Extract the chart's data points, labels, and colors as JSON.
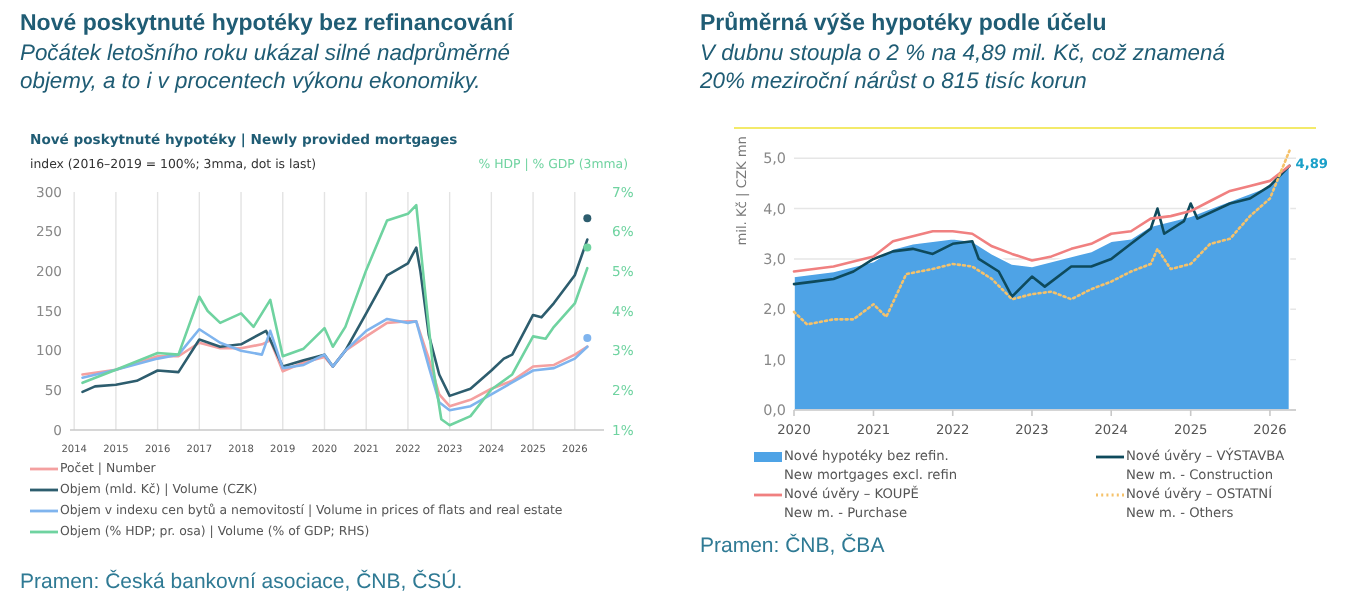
{
  "chart_data": [
    {
      "type": "line",
      "title": "Nové poskytnuté hypotéky bez refinancování",
      "subtitle": "Počátek letošního roku ukázal silné nadprůměrné\nobjemy, a to i v procentech výkonu ekonomiky.",
      "annotations": [
        "Nové poskytnuté hypotéky | Newly provided mortgages",
        "index (2016–2019 = 100%; 3mma, dot is last)",
        "Pramen: Česká bankovní asociace, ČNB, ČSÚ."
      ],
      "y2label": "% HDP | % GDP (3mma)",
      "xlim": [
        2013.9,
        2026.7
      ],
      "xticks": [
        2014,
        2015,
        2016,
        2017,
        2018,
        2019,
        2020,
        2021,
        2022,
        2023,
        2024,
        2025,
        2026
      ],
      "ylim": [
        0,
        300
      ],
      "yticks": [
        0,
        50,
        100,
        150,
        200,
        250,
        300
      ],
      "y2lim": [
        1,
        7
      ],
      "y2ticks": [
        {
          "value": 1,
          "label": "1%"
        },
        {
          "value": 2,
          "label": "2%"
        },
        {
          "value": 3,
          "label": "3%"
        },
        {
          "value": 4,
          "label": "4%"
        },
        {
          "value": 5,
          "label": "5%"
        },
        {
          "value": 6,
          "label": "6%"
        },
        {
          "value": 7,
          "label": "7%"
        }
      ],
      "grid": "x",
      "legend": "bottom",
      "series": [
        {
          "name": "Počet | Number",
          "color": "#f4a0a0",
          "x": [
            2014.2,
            2015,
            2016,
            2016.5,
            2017,
            2017.5,
            2018,
            2018.5,
            2018.7,
            2019,
            2019.5,
            2020,
            2020.2,
            2020.5,
            2021,
            2021.5,
            2022,
            2022.2,
            2022.5,
            2022.75,
            2023,
            2023.5,
            2024,
            2024.5,
            2025,
            2025.5,
            2026,
            2026.3
          ],
          "values": [
            70,
            76,
            93,
            93,
            110,
            103,
            103,
            108,
            113,
            74,
            85,
            92,
            80,
            100,
            118,
            135,
            137,
            137,
            90,
            45,
            30,
            38,
            52,
            62,
            80,
            82,
            95,
            105
          ]
        },
        {
          "name": "Objem (mld. Kč) | Volume (CZK)",
          "color": "#2d5d6e",
          "x": [
            2014.2,
            2014.5,
            2015,
            2015.5,
            2016,
            2016.5,
            2017,
            2017.5,
            2018,
            2018.6,
            2019,
            2019.5,
            2020,
            2020.2,
            2020.5,
            2021,
            2021.5,
            2022,
            2022.2,
            2022.3,
            2022.5,
            2022.75,
            2023,
            2023.5,
            2024,
            2024.3,
            2024.5,
            2025,
            2025.2,
            2025.5,
            2026,
            2026.3
          ],
          "values": [
            48,
            55,
            57,
            62,
            75,
            73,
            114,
            105,
            108,
            125,
            80,
            88,
            95,
            80,
            100,
            147,
            195,
            210,
            230,
            200,
            120,
            70,
            43,
            52,
            75,
            90,
            95,
            145,
            142,
            160,
            195,
            240
          ]
        },
        {
          "name": "Objem v indexu cen bytů a nemovitostí | Volume in prices of flats and real estate",
          "color": "#7fb4ee",
          "x": [
            2014.2,
            2015,
            2016,
            2016.5,
            2017,
            2017.5,
            2018,
            2018.5,
            2018.7,
            2019,
            2019.5,
            2020,
            2020.2,
            2020.5,
            2021,
            2021.5,
            2022,
            2022.2,
            2022.5,
            2022.75,
            2023,
            2023.5,
            2024,
            2024.5,
            2025,
            2025.5,
            2026,
            2026.3
          ],
          "values": [
            66,
            76,
            90,
            95,
            127,
            110,
            100,
            95,
            125,
            78,
            82,
            95,
            80,
            100,
            125,
            140,
            135,
            137,
            80,
            35,
            25,
            30,
            45,
            60,
            75,
            78,
            90,
            105
          ]
        },
        {
          "name": "Objem (% HDP; pr. osa) | Volume (% of GDP; RHS)",
          "color": "#6fd3a0",
          "axis": "y2",
          "x": [
            2014.2,
            2015,
            2016,
            2016.5,
            2017,
            2017.2,
            2017.5,
            2018,
            2018.3,
            2018.7,
            2019,
            2019.5,
            2020,
            2020.2,
            2020.5,
            2021,
            2021.5,
            2022,
            2022.2,
            2022.4,
            2022.6,
            2022.8,
            2023,
            2023.5,
            2024,
            2024.5,
            2025,
            2025.3,
            2025.5,
            2026,
            2026.3
          ],
          "values": [
            2.19,
            2.52,
            2.94,
            2.9,
            4.36,
            4.0,
            3.7,
            3.94,
            3.6,
            4.28,
            2.86,
            3.05,
            3.57,
            3.1,
            3.6,
            5.03,
            6.28,
            6.45,
            6.67,
            4.6,
            2.6,
            1.27,
            1.12,
            1.35,
            2.02,
            2.4,
            3.36,
            3.3,
            3.6,
            4.19,
            5.08
          ]
        },
        {
          "type": "scatter",
          "color": "#2d5d6e",
          "x": [
            2026.3
          ],
          "values": [
            267
          ]
        },
        {
          "type": "scatter",
          "color": "#6fd3a0",
          "axis": "y2",
          "x": [
            2026.3
          ],
          "values": [
            5.6
          ]
        },
        {
          "type": "scatter",
          "color": "#7fb4ee",
          "x": [
            2026.3
          ],
          "values": [
            116
          ]
        }
      ]
    },
    {
      "type": "line",
      "title": "Průměrná výše hypotéky podle účelu",
      "subtitle": "V dubnu stoupla o 2 % na 4,89 mil. Kč, což znamená\n20% meziroční nárůst o 815 tisíc korun",
      "annotations": [
        {
          "text": "4,89",
          "x": "2026-04",
          "y": 4.89
        },
        "Pramen: ČNB, ČBA"
      ],
      "ylabel": "mil. Kč  |  CZK mn",
      "xlim": [
        "2020-01",
        "2026-05"
      ],
      "xticks": [
        "2020",
        "2021",
        "2022",
        "2023",
        "2024",
        "2025",
        "2026"
      ],
      "ylim": [
        0,
        5.6
      ],
      "yticks": [
        {
          "value": 0,
          "label": "0,0"
        },
        {
          "value": 1,
          "label": "1,0"
        },
        {
          "value": 2,
          "label": "2,0"
        },
        {
          "value": 3,
          "label": "3,0"
        },
        {
          "value": 4,
          "label": "4,0"
        },
        {
          "value": 5,
          "label": "5,0"
        }
      ],
      "grid": "y",
      "legend": "bottom",
      "series": [
        {
          "type": "area",
          "name": "Nové hypotéky bez refin.\nNew mortgages excl. refin",
          "color": "#4ea3e6",
          "x": [
            "2020-01",
            "2020-07",
            "2021-01",
            "2021-04",
            "2021-07",
            "2021-10",
            "2022-01",
            "2022-04",
            "2022-07",
            "2022-10",
            "2023-01",
            "2023-04",
            "2023-07",
            "2023-10",
            "2024-01",
            "2024-04",
            "2024-07",
            "2024-10",
            "2025-01",
            "2025-04",
            "2025-07",
            "2025-10",
            "2026-01",
            "2026-04"
          ],
          "values": [
            2.65,
            2.75,
            2.95,
            3.2,
            3.3,
            3.35,
            3.4,
            3.35,
            3.1,
            2.9,
            2.85,
            2.95,
            3.05,
            3.15,
            3.35,
            3.4,
            3.65,
            3.75,
            3.85,
            4.0,
            4.15,
            4.3,
            4.45,
            4.89
          ]
        },
        {
          "name": "Nové úvěry – VÝSTAVBA\nNew m. - Construction",
          "color": "#0e4a5c",
          "x": [
            "2020-01",
            "2020-04",
            "2020-07",
            "2020-10",
            "2021-01",
            "2021-04",
            "2021-07",
            "2021-10",
            "2022-01",
            "2022-04",
            "2022-05",
            "2022-08",
            "2022-10",
            "2023-01",
            "2023-03",
            "2023-07",
            "2023-10",
            "2024-01",
            "2024-04",
            "2024-07",
            "2024-08",
            "2024-09",
            "2024-12",
            "2025-01",
            "2025-02",
            "2025-07",
            "2025-10",
            "2026-01",
            "2026-04"
          ],
          "values": [
            2.5,
            2.55,
            2.6,
            2.75,
            3.0,
            3.15,
            3.2,
            3.1,
            3.3,
            3.35,
            3.0,
            2.75,
            2.25,
            2.65,
            2.45,
            2.85,
            2.85,
            3.0,
            3.3,
            3.6,
            4.0,
            3.5,
            3.75,
            4.1,
            3.8,
            4.1,
            4.2,
            4.45,
            4.85
          ]
        },
        {
          "name": "Nové úvěry – KOUPĚ\nNew m. - Purchase",
          "color": "#f08080",
          "x": [
            "2020-01",
            "2020-07",
            "2021-01",
            "2021-04",
            "2021-07",
            "2021-10",
            "2022-01",
            "2022-04",
            "2022-07",
            "2022-10",
            "2023-01",
            "2023-04",
            "2023-07",
            "2023-10",
            "2024-01",
            "2024-04",
            "2024-07",
            "2024-10",
            "2025-01",
            "2025-04",
            "2025-07",
            "2025-10",
            "2026-01",
            "2026-04"
          ],
          "values": [
            2.75,
            2.85,
            3.05,
            3.35,
            3.45,
            3.55,
            3.55,
            3.5,
            3.25,
            3.1,
            2.97,
            3.05,
            3.2,
            3.3,
            3.5,
            3.55,
            3.8,
            3.85,
            3.95,
            4.15,
            4.35,
            4.45,
            4.55,
            4.85
          ]
        },
        {
          "name": "Nové úvěry – OSTATNÍ\nNew m. - Others",
          "color": "#f5c26b",
          "line_style": "dotted",
          "x": [
            "2020-01",
            "2020-03",
            "2020-07",
            "2020-10",
            "2021-01",
            "2021-03",
            "2021-06",
            "2021-10",
            "2022-01",
            "2022-04",
            "2022-07",
            "2022-10",
            "2023-01",
            "2023-04",
            "2023-07",
            "2023-10",
            "2024-01",
            "2024-04",
            "2024-07",
            "2024-08",
            "2024-10",
            "2025-01",
            "2025-04",
            "2025-07",
            "2025-10",
            "2026-01",
            "2026-04"
          ],
          "values": [
            1.95,
            1.7,
            1.8,
            1.8,
            2.1,
            1.85,
            2.7,
            2.8,
            2.9,
            2.85,
            2.6,
            2.2,
            2.3,
            2.35,
            2.2,
            2.4,
            2.55,
            2.75,
            2.9,
            3.2,
            2.8,
            2.9,
            3.3,
            3.4,
            3.85,
            4.2,
            5.15
          ]
        }
      ]
    }
  ]
}
